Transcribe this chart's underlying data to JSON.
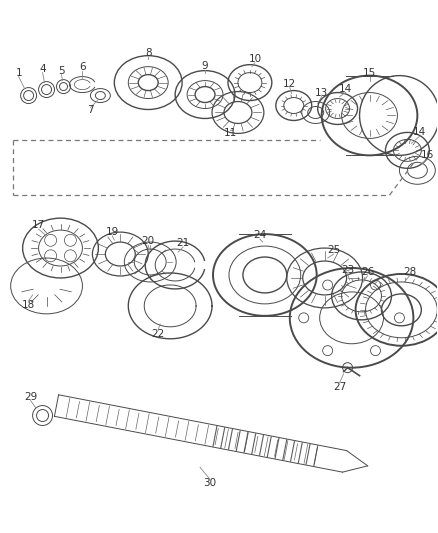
{
  "bg_color": "#ffffff",
  "line_color": "#4a4a4a",
  "label_color": "#333333",
  "fig_width": 4.38,
  "fig_height": 5.33,
  "dpi": 100,
  "label_fontsize": 7.5
}
